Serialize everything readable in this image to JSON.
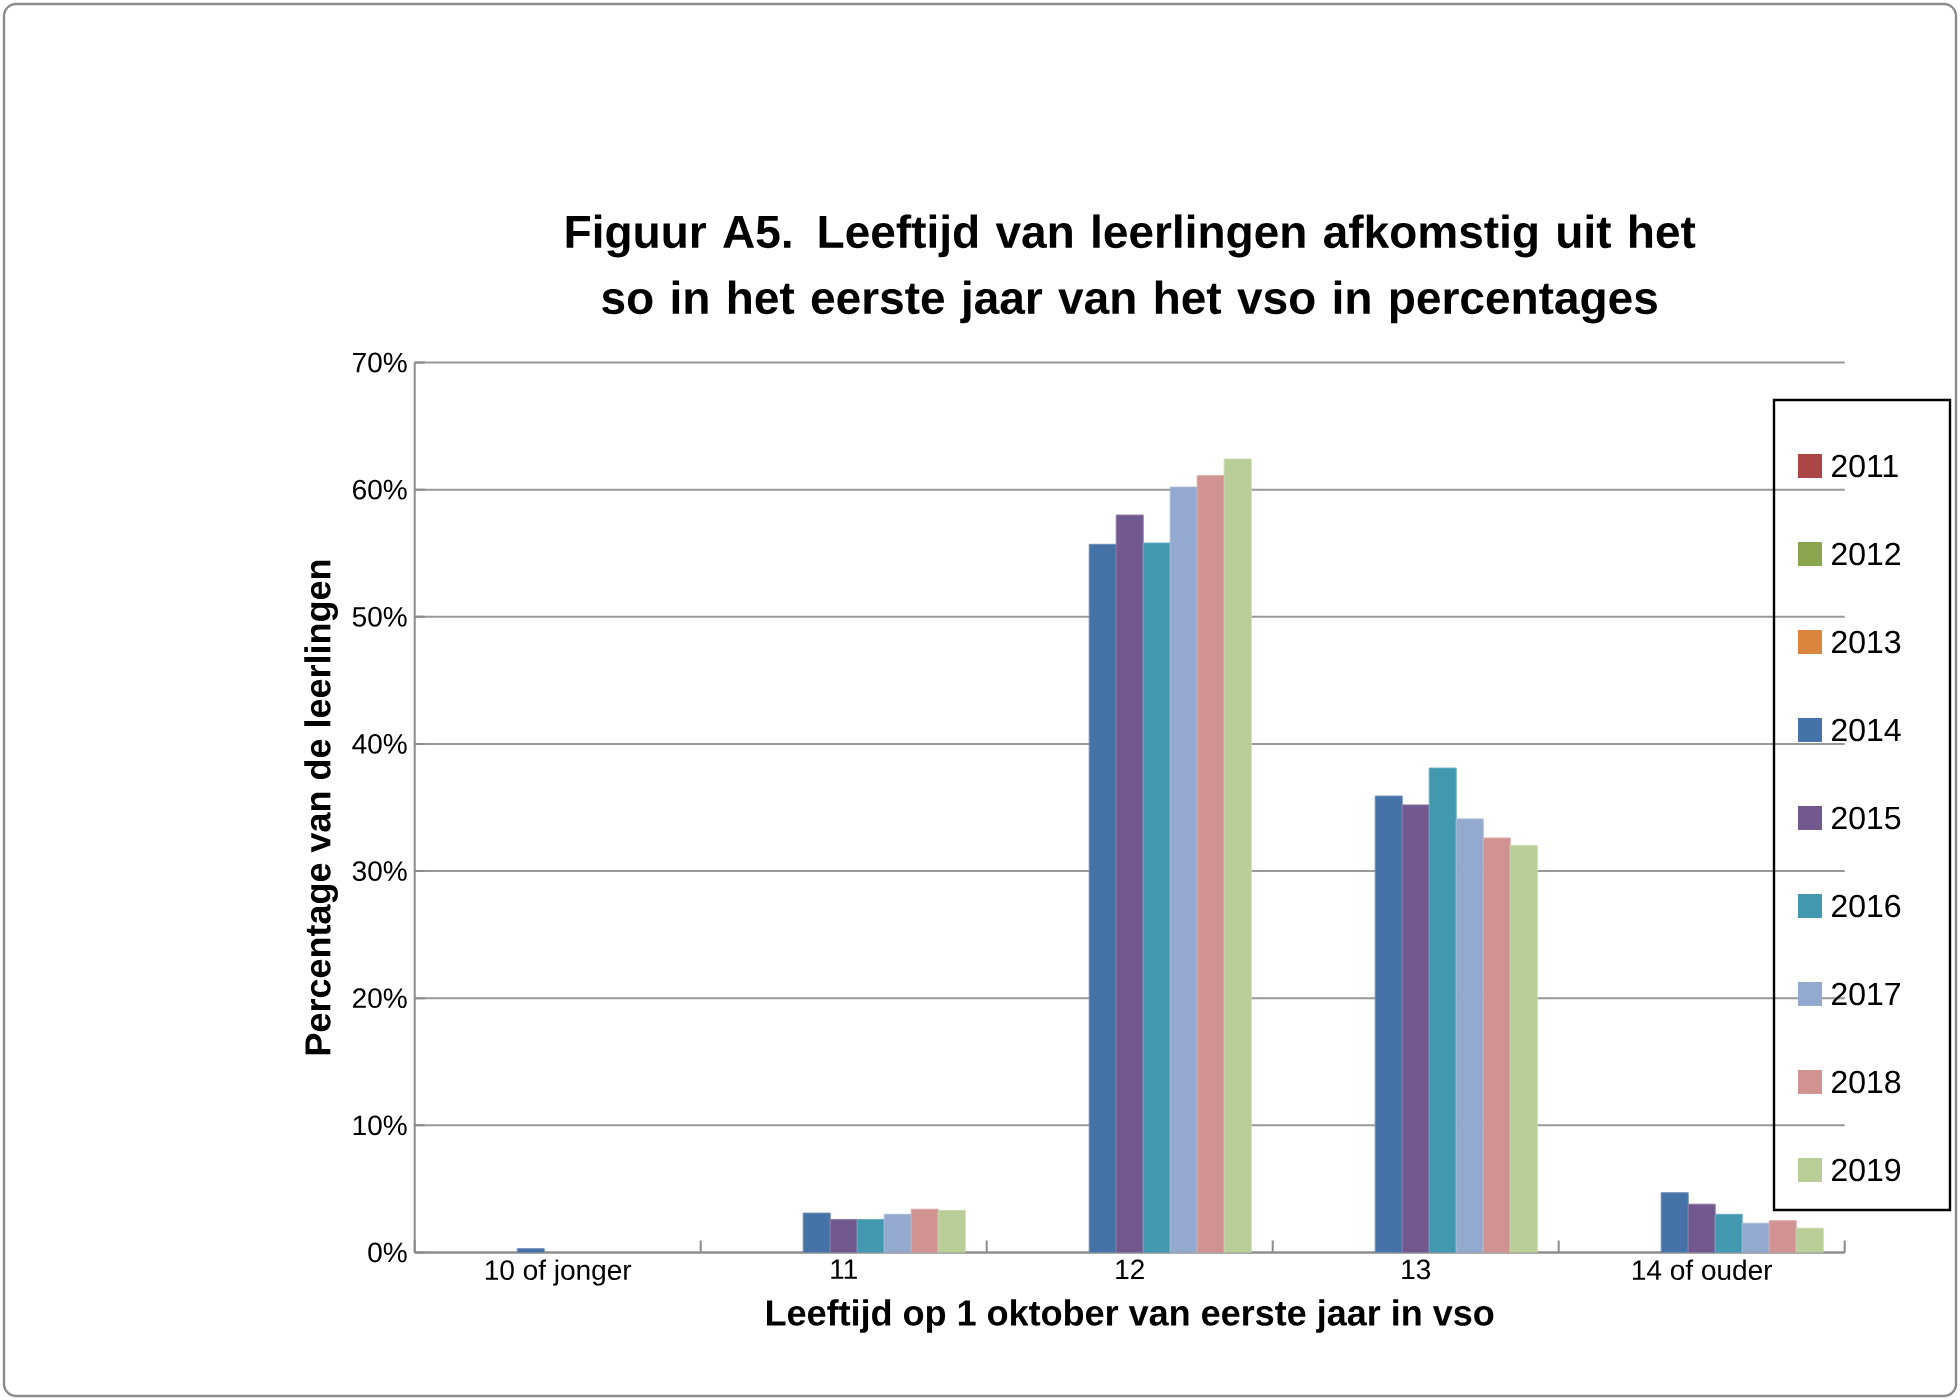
{
  "chart_data": {
    "type": "bar",
    "title": "Figuur A5. Leeftijd van leerlingen afkomstig uit het so in het eerste jaar van het vso in percentages",
    "xlabel": "Leeftijd op 1 oktober van eerste jaar in vso",
    "ylabel": "Percentage van de leerlingen",
    "categories": [
      "10 of jonger",
      "11",
      "12",
      "13",
      "14 of ouder"
    ],
    "series": [
      {
        "name": "2011",
        "color": "#aa4643",
        "values": [
          null,
          null,
          null,
          null,
          null
        ]
      },
      {
        "name": "2012",
        "color": "#89a54e",
        "values": [
          null,
          null,
          null,
          null,
          null
        ]
      },
      {
        "name": "2013",
        "color": "#db843d",
        "values": [
          null,
          null,
          null,
          null,
          null
        ]
      },
      {
        "name": "2014",
        "color": "#4572a7",
        "values": [
          0.3,
          3.1,
          55.7,
          35.9,
          4.7
        ]
      },
      {
        "name": "2015",
        "color": "#71588f",
        "values": [
          null,
          2.6,
          58.0,
          35.2,
          3.8
        ]
      },
      {
        "name": "2016",
        "color": "#4198af",
        "values": [
          null,
          2.6,
          55.8,
          38.1,
          3.0
        ]
      },
      {
        "name": "2017",
        "color": "#93a9cf",
        "values": [
          null,
          3.0,
          60.2,
          34.1,
          2.3
        ]
      },
      {
        "name": "2018",
        "color": "#d19392",
        "values": [
          null,
          3.4,
          61.1,
          32.6,
          2.5
        ]
      },
      {
        "name": "2019",
        "color": "#b9cd96",
        "values": [
          null,
          3.3,
          62.4,
          32.0,
          1.9
        ]
      }
    ],
    "ylim": [
      0,
      70
    ],
    "yticks": [
      {
        "value": 0,
        "label": "0%"
      },
      {
        "value": 10,
        "label": "10%"
      },
      {
        "value": 20,
        "label": "20%"
      },
      {
        "value": 30,
        "label": "30%"
      },
      {
        "value": 40,
        "label": "40%"
      },
      {
        "value": 50,
        "label": "50%"
      },
      {
        "value": 60,
        "label": "60%"
      },
      {
        "value": 70,
        "label": "70%"
      }
    ],
    "grid": "y",
    "legend": "right"
  }
}
